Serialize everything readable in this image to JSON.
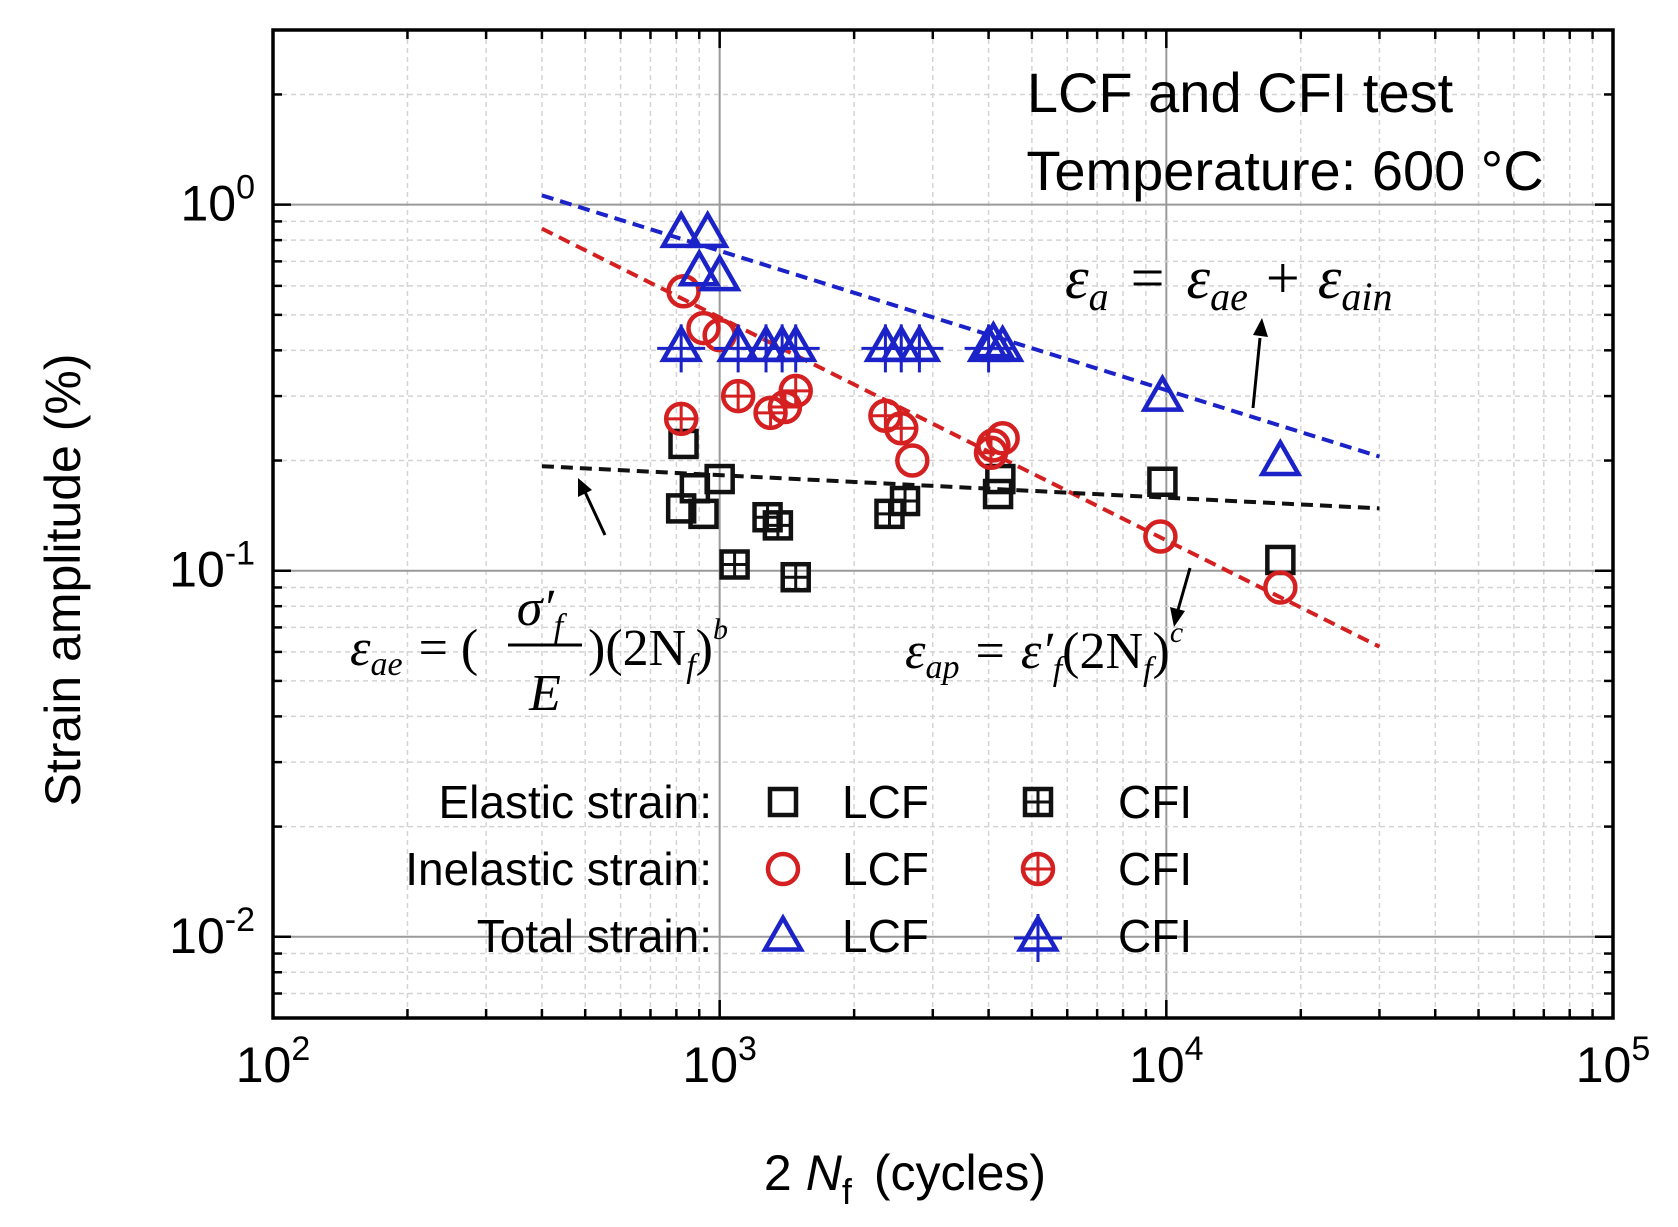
{
  "chart_data": {
    "type": "scatter",
    "title": "LCF and CFI test",
    "subtitle": "Temperature: 600 °C",
    "xlabel": {
      "prefix": "2",
      "var": "N",
      "sub": "f",
      "suffix": "(cycles)"
    },
    "ylabel": "Strain amplitude (%)",
    "xscale": "log",
    "yscale": "log",
    "xlim": [
      100,
      100000
    ],
    "ylim": [
      0.006,
      3.0
    ],
    "grid": true,
    "x_ticks": [
      {
        "base": "10",
        "exp": "2",
        "value": 100
      },
      {
        "base": "10",
        "exp": "3",
        "value": 1000
      },
      {
        "base": "10",
        "exp": "4",
        "value": 10000
      },
      {
        "base": "10",
        "exp": "5",
        "value": 100000
      }
    ],
    "y_ticks": [
      {
        "base": "10",
        "exp": "-2",
        "value": 0.01
      },
      {
        "base": "10",
        "exp": "-1",
        "value": 0.1
      },
      {
        "base": "10",
        "exp": "0",
        "value": 1
      }
    ],
    "colors": {
      "elastic": "#111111",
      "inelastic": "#d42020",
      "total": "#1a22c8"
    },
    "series": [
      {
        "name": "Elastic strain LCF",
        "group": "elastic",
        "test": "LCF",
        "marker": "square",
        "points": [
          [
            830,
            0.222
          ],
          [
            820,
            0.148
          ],
          [
            880,
            0.168
          ],
          [
            920,
            0.143
          ],
          [
            1000,
            0.178
          ],
          [
            4200,
            0.162
          ],
          [
            4250,
            0.178
          ],
          [
            9800,
            0.175
          ],
          [
            18000,
            0.107
          ]
        ]
      },
      {
        "name": "Elastic strain CFI",
        "group": "elastic",
        "test": "CFI",
        "marker": "square-plus",
        "points": [
          [
            1080,
            0.104
          ],
          [
            1280,
            0.14
          ],
          [
            1350,
            0.133
          ],
          [
            1480,
            0.096
          ],
          [
            2400,
            0.143
          ],
          [
            2600,
            0.155
          ]
        ]
      },
      {
        "name": "Inelastic strain LCF",
        "group": "inelastic",
        "test": "LCF",
        "marker": "circle",
        "points": [
          [
            830,
            0.58
          ],
          [
            920,
            0.46
          ],
          [
            1000,
            0.44
          ],
          [
            2700,
            0.2
          ],
          [
            4100,
            0.22
          ],
          [
            4300,
            0.23
          ],
          [
            9700,
            0.124
          ],
          [
            18000,
            0.09
          ]
        ]
      },
      {
        "name": "Inelastic strain CFI",
        "group": "inelastic",
        "test": "CFI",
        "marker": "circle-plus",
        "points": [
          [
            820,
            0.26
          ],
          [
            1100,
            0.3
          ],
          [
            1300,
            0.27
          ],
          [
            1400,
            0.28
          ],
          [
            1480,
            0.31
          ],
          [
            2350,
            0.265
          ],
          [
            2550,
            0.245
          ],
          [
            4050,
            0.21
          ]
        ]
      },
      {
        "name": "Total strain LCF",
        "group": "total",
        "test": "LCF",
        "marker": "triangle",
        "points": [
          [
            820,
            0.84
          ],
          [
            940,
            0.84
          ],
          [
            900,
            0.66
          ],
          [
            1000,
            0.64
          ],
          [
            4100,
            0.42
          ],
          [
            4300,
            0.41
          ],
          [
            9800,
            0.3
          ],
          [
            18000,
            0.2
          ]
        ]
      },
      {
        "name": "Total strain CFI",
        "group": "total",
        "test": "CFI",
        "marker": "triangle-plus",
        "points": [
          [
            820,
            0.41
          ],
          [
            1100,
            0.41
          ],
          [
            1270,
            0.41
          ],
          [
            1380,
            0.41
          ],
          [
            1480,
            0.41
          ],
          [
            2350,
            0.41
          ],
          [
            2550,
            0.41
          ],
          [
            2800,
            0.41
          ],
          [
            4000,
            0.41
          ]
        ]
      }
    ],
    "fits": [
      {
        "name": "Total strain fit",
        "group": "total",
        "x": [
          400,
          30000
        ],
        "y": [
          1.06,
          0.205
        ]
      },
      {
        "name": "Inelastic strain fit",
        "group": "inelastic",
        "x": [
          400,
          30000
        ],
        "y": [
          0.86,
          0.062
        ]
      },
      {
        "name": "Elastic strain fit",
        "group": "elastic",
        "x": [
          400,
          30000
        ],
        "y": [
          0.193,
          0.148
        ]
      }
    ],
    "legend": {
      "placement": "bottom-left",
      "rows": [
        {
          "label": "Elastic strain:",
          "group": "elastic",
          "lcf_marker": "square",
          "cfi_marker": "square-plus"
        },
        {
          "label": "Inelastic strain:",
          "group": "inelastic",
          "lcf_marker": "circle",
          "cfi_marker": "circle-plus"
        },
        {
          "label": "Total strain:",
          "group": "total",
          "lcf_marker": "triangle",
          "cfi_marker": "triangle-plus"
        }
      ],
      "col1": "LCF",
      "col2": "CFI"
    },
    "equations": {
      "total": {
        "lhs": "ε",
        "lhs_sub": "a",
        "eq": "=",
        "t1": "ε",
        "t1_sub": "ae",
        "plus": "+",
        "t2": "ε",
        "t2_sub": "ain"
      },
      "elastic": {
        "lhs": "ε",
        "lhs_sub": "ae",
        "eq": "= (",
        "num": "σ′",
        "num_sub": "f",
        "den": "E",
        "close": ")(2N",
        "n_sub": "f",
        "close2": ")",
        "exp": "b"
      },
      "plastic": {
        "lhs": "ε",
        "lhs_sub": "ap",
        "eq": "=",
        "coef": "ε′",
        "coef_sub": "f",
        "mid": "(2N",
        "n_sub": "f",
        "close": ")",
        "exp": "c"
      }
    }
  }
}
